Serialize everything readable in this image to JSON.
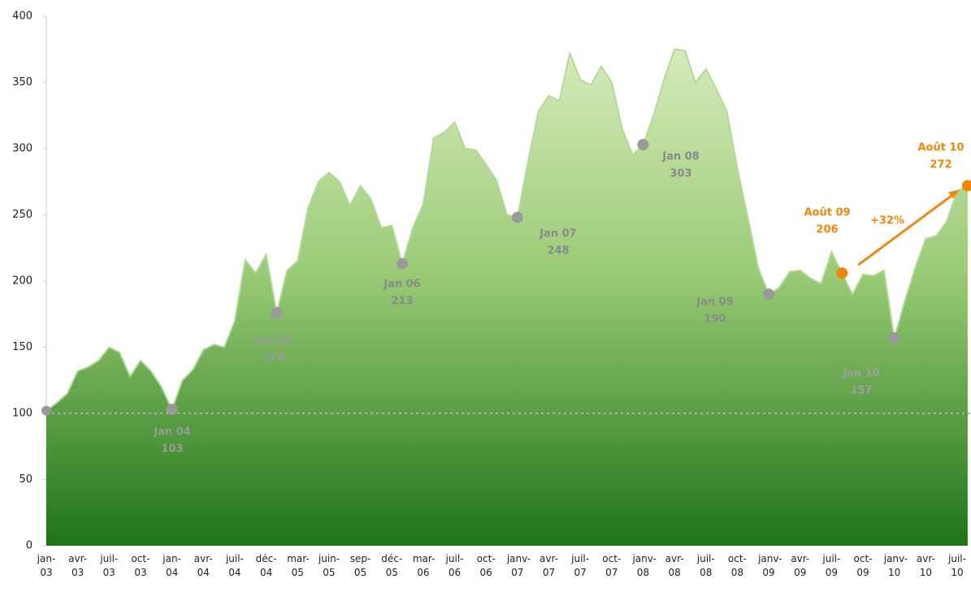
{
  "chart_data": {
    "type": "area",
    "categories": [
      "jan-03",
      null,
      null,
      "avr-03",
      null,
      null,
      "juil-03",
      null,
      null,
      "oct-03",
      null,
      null,
      "jan-04",
      null,
      null,
      "avr-04",
      null,
      null,
      "juil-04",
      null,
      null,
      "déc-04",
      null,
      null,
      "mar-05",
      null,
      null,
      "juin-05",
      null,
      null,
      "sep-05",
      null,
      null,
      "déc-05",
      null,
      null,
      "mar-06",
      null,
      null,
      "juil-06",
      null,
      null,
      "oct-06",
      null,
      null,
      "janv-07",
      null,
      null,
      "avr-07",
      null,
      null,
      "juil-07",
      null,
      null,
      "oct-07",
      null,
      null,
      "janv-08",
      null,
      null,
      "avr-08",
      null,
      null,
      "juil-08",
      null,
      null,
      "oct-08",
      null,
      null,
      "janv-09",
      null,
      null,
      "avr-09",
      null,
      null,
      "juil-09",
      null,
      null,
      "oct-09",
      null,
      null,
      "janv-10",
      null,
      null,
      "avr-10",
      null,
      null,
      "juil-10",
      null
    ],
    "values": [
      102,
      108,
      115,
      132,
      135,
      140,
      150,
      146,
      128,
      140,
      132,
      120,
      103,
      125,
      133,
      148,
      152,
      150,
      170,
      216,
      206,
      220,
      176,
      208,
      215,
      255,
      275,
      282,
      275,
      257,
      272,
      262,
      240,
      242,
      213,
      240,
      258,
      308,
      312,
      320,
      300,
      299,
      288,
      276,
      250,
      248,
      290,
      328,
      340,
      336,
      372,
      352,
      348,
      362,
      350,
      315,
      295,
      303,
      325,
      352,
      375,
      374,
      350,
      360,
      345,
      328,
      285,
      248,
      210,
      190,
      195,
      207,
      208,
      202,
      198,
      222,
      206,
      190,
      205,
      204,
      208,
      157,
      185,
      210,
      232,
      234,
      245,
      268,
      272
    ],
    "ylim": [
      0,
      400
    ],
    "yticks": [
      0,
      50,
      100,
      150,
      200,
      250,
      300,
      350,
      400
    ],
    "reference_line": 100,
    "annotations": [
      {
        "label": "Jan 04",
        "value": 103,
        "color": "#9a9a9a"
      },
      {
        "label": "Jan 05",
        "value": 176,
        "color": "#9a9a9a"
      },
      {
        "label": "Jan 06",
        "value": 213,
        "color": "#8a8a8a"
      },
      {
        "label": "Jan 07",
        "value": 248,
        "color": "#8a8a8a"
      },
      {
        "label": "Jan 08",
        "value": 303,
        "color": "#8a8a8a"
      },
      {
        "label": "Jan 09",
        "value": 190,
        "color": "#8a8a8a"
      },
      {
        "label": "Jan 10",
        "value": 157,
        "color": "#a0a0a0"
      },
      {
        "label": "Août 09",
        "value": 206,
        "color": "#f0870a"
      },
      {
        "label": "Août 10",
        "value": 272,
        "color": "#f0870a"
      }
    ],
    "change_label": "+32%"
  }
}
